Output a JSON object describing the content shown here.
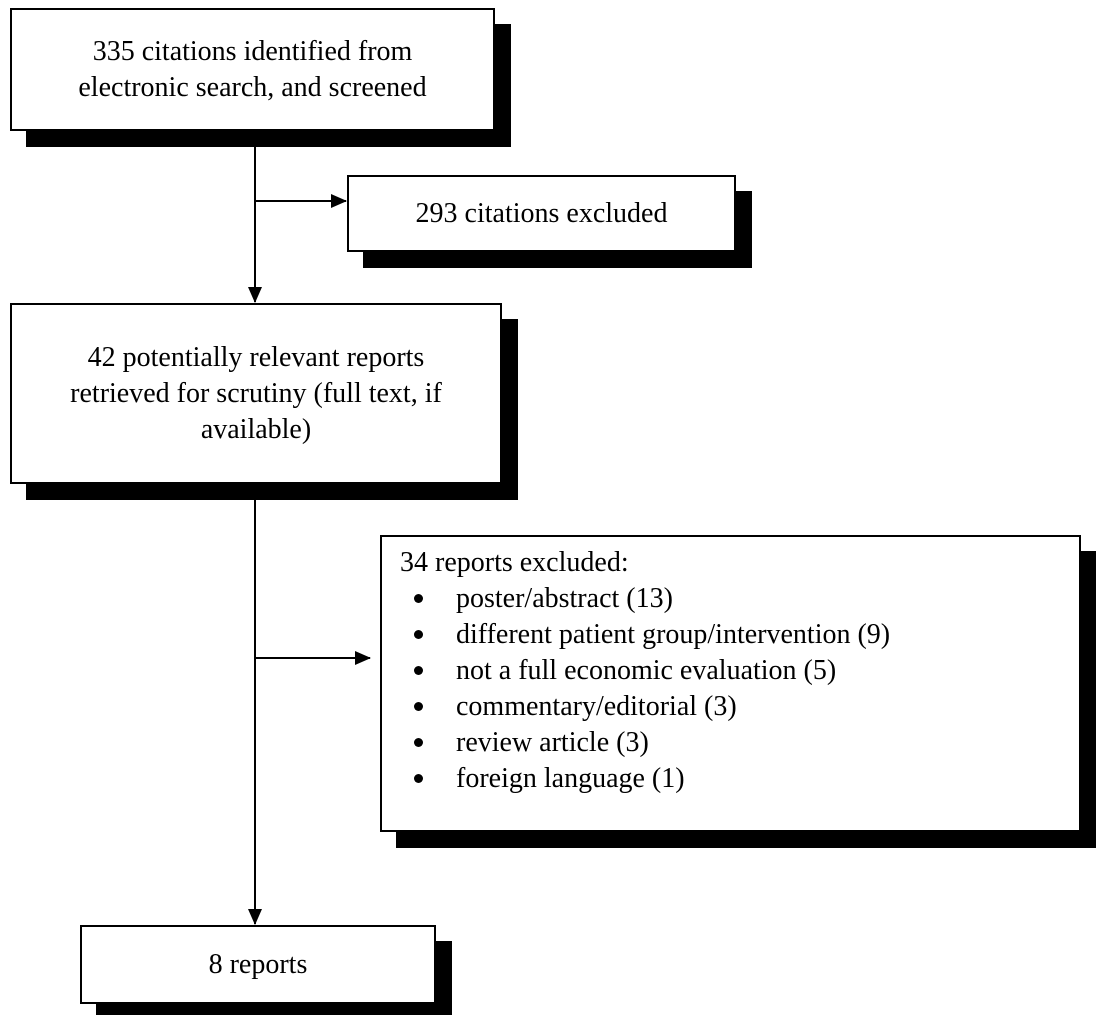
{
  "flowchart": {
    "search_box": {
      "lines": [
        "335 citations identified from",
        "electronic search, and screened"
      ]
    },
    "excluded_citations_box": {
      "text": "293 citations excluded"
    },
    "retrieved_box": {
      "lines": [
        "42 potentially relevant reports",
        "retrieved for scrutiny (full text, if",
        "available)"
      ]
    },
    "excluded_reports_box": {
      "heading": "34 reports excluded:",
      "reasons": [
        "poster/abstract (13)",
        "different patient group/intervention (9)",
        "not a full economic evaluation (5)",
        "commentary/editorial (3)",
        "review article (3)",
        "foreign language (1)"
      ]
    },
    "final_box": {
      "text": "8 reports"
    }
  },
  "colors": {
    "border": "#000000",
    "shadow": "#000000",
    "background": "#ffffff"
  }
}
